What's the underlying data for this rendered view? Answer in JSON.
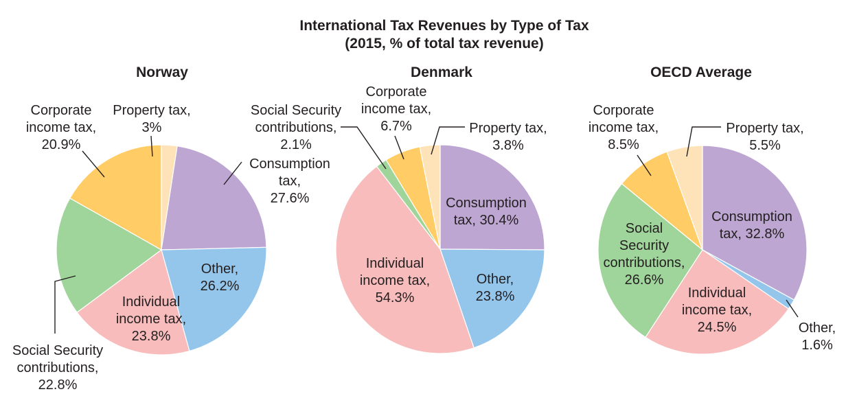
{
  "colors": {
    "property": "#ffe3b8",
    "consumption": "#bda6d1",
    "other": "#94c6ec",
    "individual": "#f8bcbc",
    "social": "#9fd49a",
    "corporate": "#ffcc66"
  },
  "chart_data": {
    "type": "pie",
    "title": "International Tax Revenues by Type of Tax",
    "subtitle": "(2015, % of total tax revenue)",
    "charts": [
      {
        "name": "Norway",
        "slices": [
          {
            "key": "property",
            "value": 3,
            "label_lines": [
              "Property tax,",
              "3%"
            ]
          },
          {
            "key": "consumption",
            "value": 27.6,
            "label_lines": [
              "Consumption",
              "tax,",
              "27.6%"
            ]
          },
          {
            "key": "other",
            "value": 26.2,
            "label_lines": [
              "Other,",
              "26.2%"
            ]
          },
          {
            "key": "individual",
            "value": 23.8,
            "label_lines": [
              "Individual",
              "income tax,",
              "23.8%"
            ]
          },
          {
            "key": "social",
            "value": 22.8,
            "label_lines": [
              "Social Security",
              "contributions,",
              "22.8%"
            ]
          },
          {
            "key": "corporate",
            "value": 20.9,
            "label_lines": [
              "Corporate",
              "income tax,",
              "20.9%"
            ]
          }
        ]
      },
      {
        "name": "Denmark",
        "slices": [
          {
            "key": "consumption",
            "value": 30.4,
            "label_lines": [
              "Consumption",
              "tax, 30.4%"
            ]
          },
          {
            "key": "other",
            "value": 23.8,
            "label_lines": [
              "Other,",
              "23.8%"
            ]
          },
          {
            "key": "individual",
            "value": 54.3,
            "label_lines": [
              "Individual",
              "income tax,",
              "54.3%"
            ]
          },
          {
            "key": "social",
            "value": 2.1,
            "label_lines": [
              "Social Security",
              "contributions,",
              "2.1%"
            ]
          },
          {
            "key": "corporate",
            "value": 6.7,
            "label_lines": [
              "Corporate",
              "income tax,",
              "6.7%"
            ]
          },
          {
            "key": "property",
            "value": 3.8,
            "label_lines": [
              "Property tax,",
              "3.8%"
            ]
          }
        ]
      },
      {
        "name": "OECD Average",
        "slices": [
          {
            "key": "consumption",
            "value": 32.8,
            "label_lines": [
              "Consumption",
              "tax, 32.8%"
            ]
          },
          {
            "key": "other",
            "value": 1.6,
            "label_lines": [
              "Other,",
              "1.6%"
            ]
          },
          {
            "key": "individual",
            "value": 24.5,
            "label_lines": [
              "Individual",
              "income tax,",
              "24.5%"
            ]
          },
          {
            "key": "social",
            "value": 26.6,
            "label_lines": [
              "Social",
              "Security",
              "contributions,",
              "26.6%"
            ]
          },
          {
            "key": "corporate",
            "value": 8.5,
            "label_lines": [
              "Corporate",
              "income tax,",
              "8.5%"
            ]
          },
          {
            "key": "property",
            "value": 5.5,
            "label_lines": [
              "Property tax,",
              "5.5%"
            ]
          }
        ]
      }
    ]
  }
}
